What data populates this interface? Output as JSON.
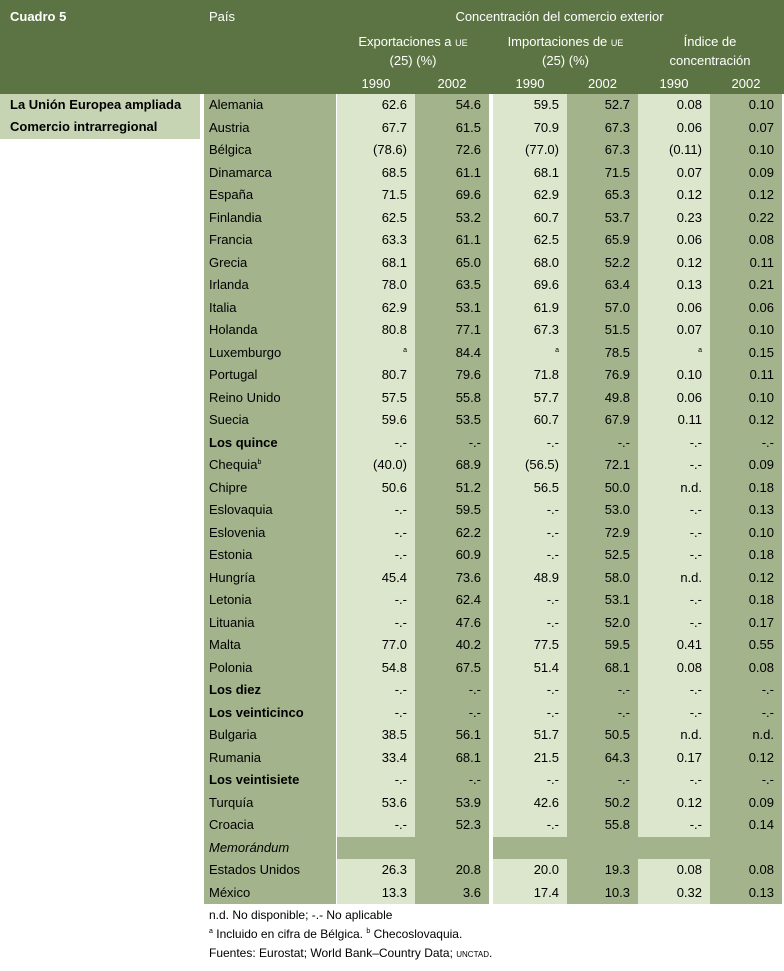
{
  "header": {
    "cuadro": "Cuadro 5",
    "pais": "País",
    "concentracion": "Concentración del comercio exterior",
    "export_line1_a": "Exportaciones a ",
    "export_line1_b": "ue",
    "export_line2": "(25) (%)",
    "import_line1_a": "Importaciones de ",
    "import_line1_b": "ue",
    "import_line2": "(25) (%)",
    "indice_line1": "Índice de",
    "indice_line2": "concentración",
    "years": [
      "1990",
      "2002",
      "1990",
      "2002",
      "1990",
      "2002"
    ]
  },
  "left": {
    "line1": "La Unión Europea ampliada",
    "line2": "Comercio intrarregional"
  },
  "rows": [
    {
      "name": "Alemania",
      "v": [
        "62.6",
        "54.6",
        "59.5",
        "52.7",
        "0.08",
        "0.10"
      ]
    },
    {
      "name": "Austria",
      "v": [
        "67.7",
        "61.5",
        "70.9",
        "67.3",
        "0.06",
        "0.07"
      ]
    },
    {
      "name": "Bélgica",
      "v": [
        "(78.6)",
        "72.6",
        "(77.0)",
        "67.3",
        "(0.11)",
        "0.10"
      ]
    },
    {
      "name": "Dinamarca",
      "v": [
        "68.5",
        "61.1",
        "68.1",
        "71.5",
        "0.07",
        "0.09"
      ]
    },
    {
      "name": "España",
      "v": [
        "71.5",
        "69.6",
        "62.9",
        "65.3",
        "0.12",
        "0.12"
      ]
    },
    {
      "name": "Finlandia",
      "v": [
        "62.5",
        "53.2",
        "60.7",
        "53.7",
        "0.23",
        "0.22"
      ]
    },
    {
      "name": "Francia",
      "v": [
        "63.3",
        "61.1",
        "62.5",
        "65.9",
        "0.06",
        "0.08"
      ]
    },
    {
      "name": "Grecia",
      "v": [
        "68.1",
        "65.0",
        "68.0",
        "52.2",
        "0.12",
        "0.11"
      ]
    },
    {
      "name": "Irlanda",
      "v": [
        "78.0",
        "63.5",
        "69.6",
        "63.4",
        "0.13",
        "0.21"
      ]
    },
    {
      "name": "Italia",
      "v": [
        "62.9",
        "53.1",
        "61.9",
        "57.0",
        "0.06",
        "0.06"
      ]
    },
    {
      "name": "Holanda",
      "v": [
        "80.8",
        "77.1",
        "67.3",
        "51.5",
        "0.07",
        "0.10"
      ]
    },
    {
      "name": "Luxemburgo",
      "v": [
        "a",
        "84.4",
        "a",
        "78.5",
        "a",
        "0.15"
      ],
      "sup": [
        0,
        2,
        4
      ]
    },
    {
      "name": "Portugal",
      "v": [
        "80.7",
        "79.6",
        "71.8",
        "76.9",
        "0.10",
        "0.11"
      ]
    },
    {
      "name": "Reino Unido",
      "v": [
        "57.5",
        "55.8",
        "57.7",
        "49.8",
        "0.06",
        "0.10"
      ]
    },
    {
      "name": "Suecia",
      "v": [
        "59.6",
        "53.5",
        "60.7",
        "67.9",
        "0.11",
        "0.12"
      ]
    },
    {
      "name": "Los quince",
      "bold": true,
      "v": [
        "-.-",
        "-.-",
        "-.-",
        "-.-",
        "-.-",
        "-.-"
      ]
    },
    {
      "name": "Chequia",
      "namesup": "b",
      "v": [
        "(40.0)",
        "68.9",
        "(56.5)",
        "72.1",
        "-.-",
        "0.09"
      ]
    },
    {
      "name": "Chipre",
      "v": [
        "50.6",
        "51.2",
        "56.5",
        "50.0",
        "n.d.",
        "0.18"
      ]
    },
    {
      "name": "Eslovaquia",
      "v": [
        "-.-",
        "59.5",
        "-.-",
        "53.0",
        "-.-",
        "0.13"
      ]
    },
    {
      "name": "Eslovenia",
      "v": [
        "-.-",
        "62.2",
        "-.-",
        "72.9",
        "-.-",
        "0.10"
      ]
    },
    {
      "name": "Estonia",
      "v": [
        "-.-",
        "60.9",
        "-.-",
        "52.5",
        "-.-",
        "0.18"
      ]
    },
    {
      "name": "Hungría",
      "v": [
        "45.4",
        "73.6",
        "48.9",
        "58.0",
        "n.d.",
        "0.12"
      ]
    },
    {
      "name": "Letonia",
      "v": [
        "-.-",
        "62.4",
        "-.-",
        "53.1",
        "-.-",
        "0.18"
      ]
    },
    {
      "name": "Lituania",
      "v": [
        "-.-",
        "47.6",
        "-.-",
        "52.0",
        "-.-",
        "0.17"
      ]
    },
    {
      "name": "Malta",
      "v": [
        "77.0",
        "40.2",
        "77.5",
        "59.5",
        "0.41",
        "0.55"
      ]
    },
    {
      "name": "Polonia",
      "v": [
        "54.8",
        "67.5",
        "51.4",
        "68.1",
        "0.08",
        "0.08"
      ]
    },
    {
      "name": "Los diez",
      "bold": true,
      "v": [
        "-.-",
        "-.-",
        "-.-",
        "-.-",
        "-.-",
        "-.-"
      ]
    },
    {
      "name": "Los veinticinco",
      "bold": true,
      "v": [
        "-.-",
        "-.-",
        "-.-",
        "-.-",
        "-.-",
        "-.-"
      ]
    },
    {
      "name": "Bulgaria",
      "v": [
        "38.5",
        "56.1",
        "51.7",
        "50.5",
        "n.d.",
        "n.d."
      ]
    },
    {
      "name": "Rumania",
      "v": [
        "33.4",
        "68.1",
        "21.5",
        "64.3",
        "0.17",
        "0.12"
      ]
    },
    {
      "name": "Los veintisiete",
      "bold": true,
      "v": [
        "-.-",
        "-.-",
        "-.-",
        "-.-",
        "-.-",
        "-.-"
      ]
    },
    {
      "name": "Turquía",
      "v": [
        "53.6",
        "53.9",
        "42.6",
        "50.2",
        "0.12",
        "0.09"
      ]
    },
    {
      "name": "Croacia",
      "v": [
        "-.-",
        "52.3",
        "-.-",
        "55.8",
        "-.-",
        "0.14"
      ]
    },
    {
      "name": "Memorándum",
      "italic": true,
      "v": [
        "",
        "",
        "",
        "",
        "",
        ""
      ]
    },
    {
      "name": "Estados Unidos",
      "v": [
        "26.3",
        "20.8",
        "20.0",
        "19.3",
        "0.08",
        "0.08"
      ]
    },
    {
      "name": "México",
      "v": [
        "13.3",
        "3.6",
        "17.4",
        "10.3",
        "0.32",
        "0.13"
      ]
    }
  ],
  "notes": {
    "line1": "n.d. No disponible; -.- No aplicable",
    "line2_sup_a": "a",
    "line2_a": " Incluido en cifra de Bélgica. ",
    "line2_sup_b": "b",
    "line2_b": " Checoslovaquia.",
    "line3_a": "Fuentes: Eurostat; World Bank–Country Data; ",
    "line3_b": "unctad",
    "line3_c": "."
  },
  "colors": {
    "header": "#5c7443",
    "name_col": "#a3b38c",
    "light_col": "#dce6cc",
    "dark_col": "#a3b38c",
    "left_box": "#c7d4b4"
  }
}
